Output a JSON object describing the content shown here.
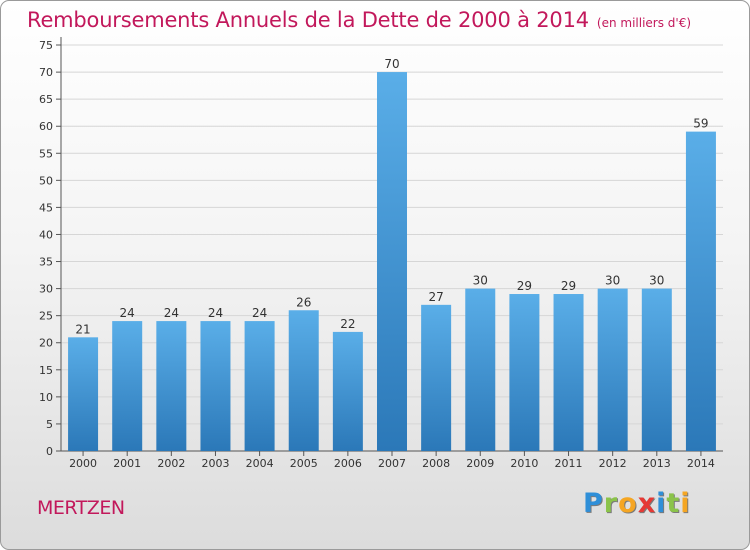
{
  "title": "Remboursements Annuels de la Dette de 2000 à 2014",
  "title_unit": "(en milliers d'€)",
  "commune": "MERTZEN",
  "logo": {
    "text": "Proxiti",
    "letters": [
      {
        "char": "P",
        "color": "#2f8fd8"
      },
      {
        "char": "r",
        "color": "#8bc34a"
      },
      {
        "char": "o",
        "color": "#f5a623"
      },
      {
        "char": "x",
        "color": "#e53935"
      },
      {
        "char": "i",
        "color": "#2f8fd8"
      },
      {
        "char": "t",
        "color": "#8bc34a"
      },
      {
        "char": "i",
        "color": "#f5a623"
      }
    ]
  },
  "colors": {
    "accent": "#c2185b",
    "bar_light": "#5aaee8",
    "bar_dark": "#2b78b8"
  },
  "chart_data": {
    "type": "bar",
    "title": "Remboursements Annuels de la Dette de 2000 à 2014",
    "categories": [
      "2000",
      "2001",
      "2002",
      "2003",
      "2004",
      "2005",
      "2006",
      "2007",
      "2008",
      "2009",
      "2010",
      "2011",
      "2012",
      "2013",
      "2014"
    ],
    "values": [
      21,
      24,
      24,
      24,
      24,
      26,
      22,
      70,
      27,
      30,
      29,
      29,
      30,
      30,
      59
    ],
    "ylim": [
      0,
      75
    ],
    "yticks": [
      0,
      5,
      10,
      15,
      20,
      25,
      30,
      35,
      40,
      45,
      50,
      55,
      60,
      65,
      70,
      75
    ],
    "grid": true,
    "data_labels": true
  }
}
